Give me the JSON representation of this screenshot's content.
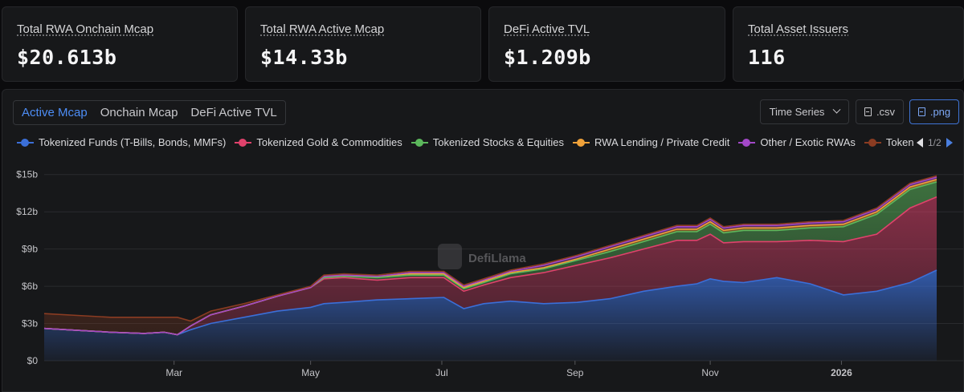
{
  "stats": [
    {
      "label": "Total RWA Onchain Mcap",
      "value": "$20.613b"
    },
    {
      "label": "Total RWA Active Mcap",
      "value": "$14.33b"
    },
    {
      "label": "DeFi Active TVL",
      "value": "$1.209b"
    },
    {
      "label": "Total Asset Issuers",
      "value": "116"
    }
  ],
  "tabs": [
    "Active Mcap",
    "Onchain Mcap",
    "DeFi Active TVL"
  ],
  "active_tab": "Active Mcap",
  "controls": {
    "time_series": "Time Series",
    "csv": ".csv",
    "png": ".png"
  },
  "pager": "1/2",
  "watermark": "DefiLlama",
  "chart_data": {
    "type": "area",
    "stacked": true,
    "title": "",
    "xlabel": "",
    "ylabel": "",
    "ylim": [
      0,
      15.5
    ],
    "y_ticks": [
      "$0",
      "$3b",
      "$6b",
      "$9b",
      "$12b",
      "$15b"
    ],
    "y_tick_values": [
      0,
      3,
      6,
      9,
      12,
      15
    ],
    "x_ticks": [
      "Mar",
      "May",
      "Jul",
      "Sep",
      "Nov",
      "2026"
    ],
    "x_tick_positions": [
      1.95,
      4.0,
      5.97,
      7.97,
      10.0,
      11.97
    ],
    "xlim": [
      0,
      13.4
    ],
    "x": [
      0,
      0.5,
      1.0,
      1.5,
      1.8,
      2.0,
      2.2,
      2.5,
      3.0,
      3.5,
      4.0,
      4.2,
      4.5,
      5.0,
      5.5,
      6.0,
      6.3,
      6.6,
      7.0,
      7.5,
      8.0,
      8.5,
      9.0,
      9.5,
      9.8,
      10.0,
      10.2,
      10.5,
      11.0,
      11.5,
      12.0,
      12.5,
      13.0,
      13.4
    ],
    "series": [
      {
        "name": "Tokenized Funds (T-Bills, Bonds, MMFs)",
        "color": "#3b6fd8",
        "values": [
          2.6,
          2.45,
          2.3,
          2.2,
          2.3,
          2.1,
          2.5,
          3.0,
          3.5,
          4.0,
          4.3,
          4.6,
          4.7,
          4.9,
          5.0,
          5.1,
          4.2,
          4.6,
          4.8,
          4.6,
          4.7,
          5.0,
          5.6,
          6.0,
          6.2,
          6.6,
          6.4,
          6.3,
          6.7,
          6.2,
          5.3,
          5.6,
          6.3,
          7.3
        ]
      },
      {
        "name": "Tokenized Gold & Commodities",
        "color": "#e0426c",
        "values": [
          0,
          0,
          0,
          0,
          0,
          0,
          0.3,
          0.7,
          0.9,
          1.2,
          1.6,
          2.0,
          2.0,
          1.6,
          1.7,
          1.6,
          1.4,
          1.5,
          1.9,
          2.5,
          3.0,
          3.3,
          3.4,
          3.7,
          3.5,
          3.6,
          3.1,
          3.3,
          2.9,
          3.5,
          4.3,
          4.6,
          6.0,
          5.9
        ]
      },
      {
        "name": "Tokenized Stocks & Equities",
        "color": "#5cb85c",
        "values": [
          0,
          0,
          0,
          0,
          0,
          0,
          0,
          0,
          0,
          0,
          0,
          0.1,
          0.1,
          0.2,
          0.2,
          0.2,
          0.2,
          0.2,
          0.3,
          0.3,
          0.4,
          0.5,
          0.6,
          0.7,
          0.7,
          0.8,
          0.8,
          0.9,
          0.9,
          1.0,
          1.2,
          1.6,
          1.5,
          1.2
        ]
      },
      {
        "name": "RWA Lending / Private Credit",
        "color": "#f0a23a",
        "values": [
          0,
          0,
          0,
          0,
          0,
          0,
          0,
          0,
          0,
          0,
          0,
          0.1,
          0.1,
          0.1,
          0.1,
          0.1,
          0.1,
          0.1,
          0.1,
          0.1,
          0.1,
          0.2,
          0.2,
          0.2,
          0.2,
          0.2,
          0.2,
          0.2,
          0.2,
          0.2,
          0.2,
          0.2,
          0.2,
          0.2
        ]
      },
      {
        "name": "Other / Exotic RWAs",
        "color": "#a348c8",
        "values": [
          0,
          0,
          0,
          0,
          0,
          0,
          0,
          0,
          0,
          0,
          0,
          0,
          0,
          0,
          0.1,
          0.1,
          0.1,
          0.1,
          0.1,
          0.2,
          0.2,
          0.2,
          0.2,
          0.2,
          0.2,
          0.2,
          0.2,
          0.2,
          0.2,
          0.2,
          0.2,
          0.2,
          0.2,
          0.2
        ]
      },
      {
        "name": "Tokenize",
        "color": "#8b3c22",
        "values": [
          1.2,
          1.2,
          1.2,
          1.3,
          1.2,
          1.4,
          0.4,
          0.3,
          0.2,
          0.1,
          0.1,
          0.1,
          0.1,
          0.1,
          0.1,
          0.1,
          0.1,
          0.1,
          0.1,
          0.1,
          0.1,
          0.1,
          0.1,
          0.1,
          0.1,
          0.1,
          0.1,
          0.1,
          0.1,
          0.1,
          0.1,
          0.1,
          0.1,
          0.1
        ]
      }
    ]
  }
}
